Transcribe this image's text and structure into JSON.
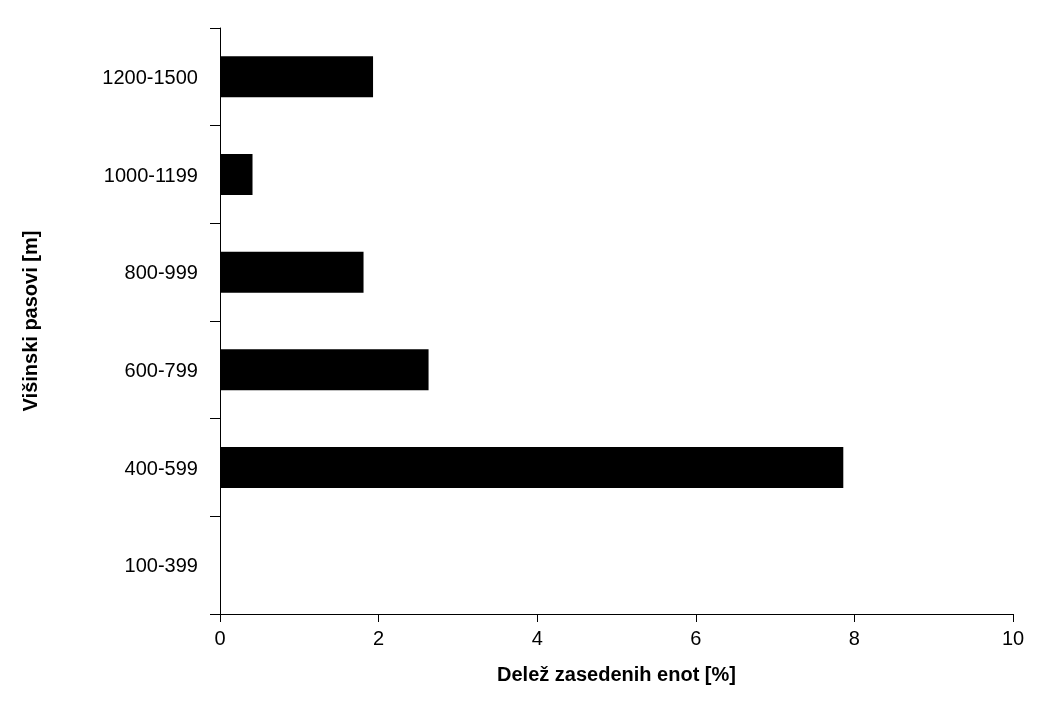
{
  "chart_data": {
    "type": "bar",
    "orientation": "horizontal",
    "xlabel": "Delež zasedenih enot [%]",
    "ylabel": "Višinski pasovi [m]",
    "categories": [
      "1200-1500",
      "1000-1199",
      "800-999",
      "600-799",
      "400-599",
      "100-399"
    ],
    "values": [
      1.93,
      0.41,
      1.81,
      2.63,
      7.86,
      0
    ],
    "color": "#000000",
    "xlim": [
      0,
      10
    ],
    "xticks": [
      0,
      2,
      4,
      6,
      8,
      10
    ],
    "grid": false
  }
}
